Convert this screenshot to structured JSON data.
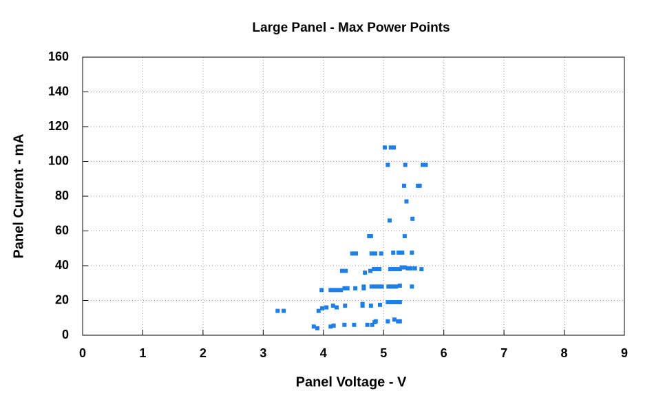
{
  "chart_data": {
    "type": "scatter",
    "title": "Large Panel - Max Power Points",
    "xlabel": "Panel Voltage - V",
    "ylabel": "Panel Current - mA",
    "color": "#1e7fe8",
    "grid": true,
    "xlim": [
      0,
      9
    ],
    "xticks": [
      0,
      1,
      2,
      3,
      4,
      5,
      6,
      7,
      8,
      9
    ],
    "ylim": [
      0,
      160
    ],
    "yticks": [
      0,
      20,
      40,
      60,
      80,
      100,
      120,
      140,
      160
    ],
    "x": [
      3.24,
      3.34,
      3.84,
      3.9,
      3.92,
      3.98,
      4.05,
      3.97,
      4.12,
      4.17,
      4.23,
      4.29,
      4.35,
      4.4,
      4.16,
      4.22,
      4.12,
      4.17,
      4.31,
      4.37,
      4.48,
      4.54,
      4.35,
      4.51,
      4.36,
      4.53,
      4.65,
      4.65,
      4.67,
      4.67,
      4.69,
      4.73,
      4.76,
      4.79,
      4.78,
      4.84,
      4.89,
      4.93,
      4.8,
      4.86,
      4.81,
      4.85,
      4.87,
      4.79,
      4.8,
      4.86,
      4.92,
      4.97,
      4.94,
      4.96,
      5.02,
      5.07,
      5.07,
      5.1,
      5.12,
      5.17,
      5.08,
      5.12,
      5.17,
      5.21,
      5.07,
      5.12,
      5.18,
      5.24,
      5.27,
      5.11,
      5.16,
      5.21,
      5.27,
      5.16,
      5.18,
      5.24,
      5.25,
      5.31,
      5.27,
      5.3,
      5.35,
      5.34,
      5.36,
      5.38,
      5.35,
      5.4,
      5.45,
      5.47,
      5.47,
      5.48,
      5.52,
      5.57,
      5.6,
      5.63,
      5.65,
      5.7,
      5.27
    ],
    "y": [
      14,
      14,
      5,
      4,
      14,
      15.5,
      16,
      26,
      26,
      26,
      26,
      26,
      27,
      27,
      17,
      16,
      5,
      5.5,
      37,
      37,
      47,
      47,
      6,
      6,
      17,
      27,
      17,
      18,
      27,
      28,
      36,
      6,
      57,
      57,
      37,
      38,
      38,
      38,
      47,
      47,
      6,
      7.5,
      8,
      17,
      28,
      28,
      28,
      28,
      17.5,
      47,
      108,
      98,
      8,
      66,
      108,
      108,
      28,
      28,
      28,
      28,
      19,
      19,
      19,
      19,
      19,
      38,
      38,
      38,
      38,
      47.5,
      9,
      8,
      47.5,
      47.5,
      28.5,
      39,
      39,
      86,
      98,
      77,
      57,
      38.5,
      38.5,
      47.5,
      28,
      67,
      38.5,
      86,
      86,
      38,
      98,
      98,
      8
    ]
  }
}
